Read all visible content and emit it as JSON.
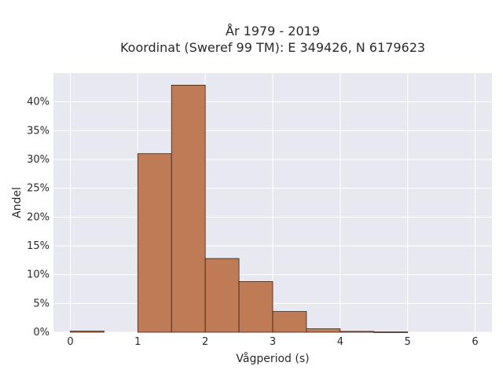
{
  "chart_data": {
    "type": "bar",
    "title_lines": [
      "År 1979 - 2019",
      "Koordinat (Sweref 99 TM): E 349426, N 6179623"
    ],
    "xlabel": "Vågperiod (s)",
    "ylabel": "Andel",
    "xlim": [
      -0.25,
      6.25
    ],
    "ylim": [
      0,
      45
    ],
    "x_ticks": [
      0,
      1,
      2,
      3,
      4,
      5,
      6
    ],
    "x_tick_labels": [
      "0",
      "1",
      "2",
      "3",
      "4",
      "5",
      "6"
    ],
    "y_ticks": [
      0,
      5,
      10,
      15,
      20,
      25,
      30,
      35,
      40
    ],
    "y_tick_labels": [
      "0%",
      "5%",
      "10%",
      "15%",
      "20%",
      "25%",
      "30%",
      "35%",
      "40%"
    ],
    "grid": true,
    "bar_color": "#bf7a56",
    "background_color": "#e8e8f0",
    "bins": [
      {
        "x0": 0.0,
        "x1": 0.5,
        "value": 0.2
      },
      {
        "x0": 1.0,
        "x1": 1.5,
        "value": 31.0
      },
      {
        "x0": 1.5,
        "x1": 2.0,
        "value": 42.9
      },
      {
        "x0": 2.0,
        "x1": 2.5,
        "value": 12.8
      },
      {
        "x0": 2.5,
        "x1": 3.0,
        "value": 8.8
      },
      {
        "x0": 3.0,
        "x1": 3.5,
        "value": 3.6
      },
      {
        "x0": 3.5,
        "x1": 4.0,
        "value": 0.6
      },
      {
        "x0": 4.0,
        "x1": 4.5,
        "value": 0.15
      },
      {
        "x0": 4.5,
        "x1": 5.0,
        "value": 0.05
      }
    ]
  }
}
